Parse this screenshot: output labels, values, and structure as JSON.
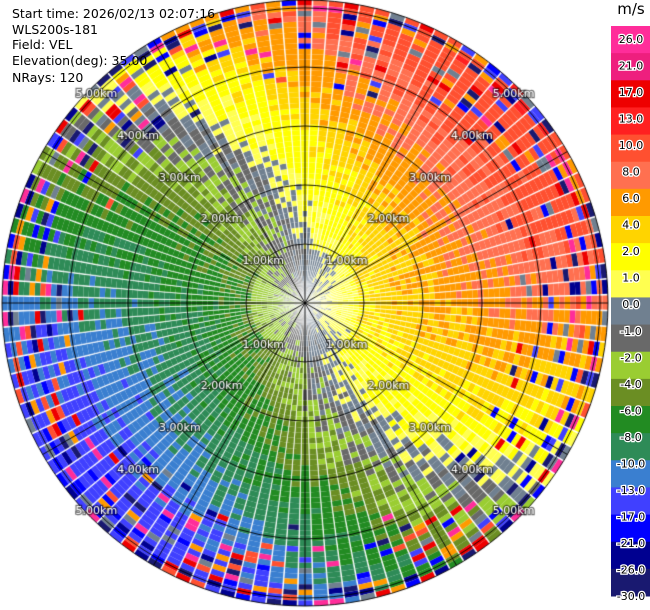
{
  "header": {
    "start_time": "Start time: 2026/02/13 02:07:16",
    "instrument": "WLS200s-181",
    "field": "Field: VEL",
    "elevation": "Elevation(deg): 35.00",
    "nrays": "NRays: 120"
  },
  "colorbar": {
    "unit": "m/s",
    "ticks": [
      "26.0",
      "21.0",
      "17.0",
      "13.0",
      "10.0",
      "8.0",
      "6.0",
      "4.0",
      "2.0",
      "1.0",
      "0.0",
      "-1.0",
      "-2.0",
      "-4.0",
      "-6.0",
      "-8.0",
      "-10.0",
      "-13.0",
      "-17.0",
      "-21.0",
      "-26.0",
      "-30.0"
    ],
    "colors": [
      "#ff2d9a",
      "#ee1f7e",
      "#ee0000",
      "#ff2020",
      "#ff5030",
      "#ff7050",
      "#ff9a00",
      "#ffd400",
      "#ffff00",
      "#ffff50",
      "#708090",
      "#696969",
      "#9acd32",
      "#6b8e23",
      "#228b22",
      "#2e8b57",
      "#3a7fd0",
      "#4040ff",
      "#0000ff",
      "#000090",
      "#191970"
    ]
  },
  "range_labels": [
    "1.00km",
    "2.00km",
    "3.00km",
    "4.00km",
    "5.00km"
  ],
  "chart_data": {
    "type": "heatmap",
    "projection": "polar-ppi",
    "n_rays": 120,
    "max_range_km": 5.0,
    "range_rings_km": [
      1,
      2,
      3,
      4,
      5
    ],
    "spokes_deg": [
      0,
      30,
      60,
      90,
      120,
      150,
      180,
      210,
      240,
      270,
      300,
      330
    ],
    "field": "VEL",
    "unit": "m/s",
    "value_range": [
      -30.0,
      26.0
    ],
    "pattern_note": "radial velocity: positive (yellow/orange/red) toward east, negative (green) toward west, near-zero (gray) north/south"
  }
}
